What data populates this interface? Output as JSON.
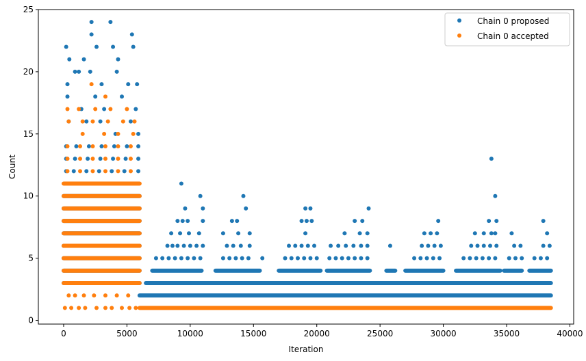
{
  "chart_data": {
    "type": "scatter",
    "xlabel": "Iteration",
    "ylabel": "Count",
    "xlim": [
      -2000,
      40300
    ],
    "ylim": [
      -0.3,
      25
    ],
    "xticks": [
      0,
      5000,
      10000,
      15000,
      20000,
      25000,
      30000,
      35000,
      40000
    ],
    "yticks": [
      0,
      5,
      10,
      15,
      20,
      25
    ],
    "grid": false,
    "legend_position": "top-right",
    "series": [
      {
        "name": "Chain 0 proposed",
        "color": "#1f77b4",
        "points": [
          [
            200,
            22
          ],
          [
            450,
            21
          ],
          [
            900,
            20
          ],
          [
            1600,
            21
          ],
          [
            2200,
            24
          ],
          [
            2200,
            23
          ],
          [
            2600,
            22
          ],
          [
            3700,
            24
          ],
          [
            3900,
            22
          ],
          [
            4300,
            21
          ],
          [
            5400,
            23
          ],
          [
            5500,
            22
          ],
          [
            300,
            19
          ],
          [
            1200,
            20
          ],
          [
            2100,
            20
          ],
          [
            3000,
            19
          ],
          [
            4200,
            20
          ],
          [
            5100,
            19
          ],
          [
            5800,
            19
          ],
          [
            300,
            18
          ],
          [
            1400,
            17
          ],
          [
            2500,
            18
          ],
          [
            3200,
            17
          ],
          [
            4600,
            18
          ],
          [
            5700,
            17
          ],
          [
            400,
            16
          ],
          [
            1800,
            16
          ],
          [
            2900,
            16
          ],
          [
            4100,
            15
          ],
          [
            5300,
            16
          ],
          [
            5900,
            15
          ],
          [
            200,
            14
          ],
          [
            1000,
            14
          ],
          [
            2000,
            14
          ],
          [
            3000,
            14
          ],
          [
            4000,
            14
          ],
          [
            5000,
            14
          ],
          [
            5900,
            14
          ],
          [
            200,
            13
          ],
          [
            900,
            13
          ],
          [
            1900,
            13
          ],
          [
            2900,
            13
          ],
          [
            3900,
            13
          ],
          [
            4900,
            13
          ],
          [
            5900,
            13
          ],
          [
            200,
            12
          ],
          [
            800,
            12
          ],
          [
            1800,
            12
          ],
          [
            2800,
            12
          ],
          [
            3800,
            12
          ],
          [
            4800,
            12
          ],
          [
            5900,
            12
          ],
          [
            200,
            11
          ],
          [
            1100,
            11
          ],
          [
            2100,
            11
          ],
          [
            3100,
            11
          ],
          [
            4100,
            11
          ],
          [
            5100,
            11
          ],
          [
            5900,
            11
          ],
          [
            9300,
            11
          ],
          [
            10800,
            10
          ],
          [
            14200,
            10
          ],
          [
            33800,
            13
          ],
          [
            34100,
            10
          ],
          [
            9600,
            9
          ],
          [
            11000,
            9
          ],
          [
            14400,
            9
          ],
          [
            19100,
            9
          ],
          [
            19500,
            9
          ],
          [
            24100,
            9
          ],
          [
            9000,
            8
          ],
          [
            9400,
            8
          ],
          [
            9800,
            8
          ],
          [
            11000,
            8
          ],
          [
            13300,
            8
          ],
          [
            13700,
            8
          ],
          [
            18800,
            8
          ],
          [
            19200,
            8
          ],
          [
            19600,
            8
          ],
          [
            23000,
            8
          ],
          [
            23600,
            8
          ],
          [
            29600,
            8
          ],
          [
            33600,
            8
          ],
          [
            34200,
            8
          ],
          [
            37900,
            8
          ],
          [
            8500,
            7
          ],
          [
            9200,
            7
          ],
          [
            9900,
            7
          ],
          [
            10700,
            7
          ],
          [
            12600,
            7
          ],
          [
            13800,
            7
          ],
          [
            14700,
            7
          ],
          [
            19100,
            7
          ],
          [
            22200,
            7
          ],
          [
            23400,
            7
          ],
          [
            24000,
            7
          ],
          [
            28500,
            7
          ],
          [
            29000,
            7
          ],
          [
            29500,
            7
          ],
          [
            32500,
            7
          ],
          [
            33200,
            7
          ],
          [
            33800,
            7
          ],
          [
            34100,
            7
          ],
          [
            35400,
            7
          ],
          [
            38200,
            7
          ],
          [
            8200,
            6
          ],
          [
            8600,
            6
          ],
          [
            9000,
            6
          ],
          [
            9500,
            6
          ],
          [
            10000,
            6
          ],
          [
            10500,
            6
          ],
          [
            11000,
            6
          ],
          [
            12900,
            6
          ],
          [
            13400,
            6
          ],
          [
            14000,
            6
          ],
          [
            14700,
            6
          ],
          [
            17800,
            6
          ],
          [
            18300,
            6
          ],
          [
            18800,
            6
          ],
          [
            19300,
            6
          ],
          [
            19800,
            6
          ],
          [
            21100,
            6
          ],
          [
            21700,
            6
          ],
          [
            22300,
            6
          ],
          [
            22900,
            6
          ],
          [
            23500,
            6
          ],
          [
            24000,
            6
          ],
          [
            25800,
            6
          ],
          [
            28300,
            6
          ],
          [
            28800,
            6
          ],
          [
            29300,
            6
          ],
          [
            29800,
            6
          ],
          [
            32200,
            6
          ],
          [
            32700,
            6
          ],
          [
            33200,
            6
          ],
          [
            33700,
            6
          ],
          [
            34200,
            6
          ],
          [
            35600,
            6
          ],
          [
            36100,
            6
          ],
          [
            37900,
            6
          ],
          [
            38400,
            6
          ],
          [
            7300,
            5
          ],
          [
            7800,
            5
          ],
          [
            8300,
            5
          ],
          [
            8800,
            5
          ],
          [
            9300,
            5
          ],
          [
            9800,
            5
          ],
          [
            10300,
            5
          ],
          [
            10800,
            5
          ],
          [
            12600,
            5
          ],
          [
            13100,
            5
          ],
          [
            13600,
            5
          ],
          [
            14100,
            5
          ],
          [
            14600,
            5
          ],
          [
            15700,
            5
          ],
          [
            17500,
            5
          ],
          [
            18000,
            5
          ],
          [
            18500,
            5
          ],
          [
            19000,
            5
          ],
          [
            19500,
            5
          ],
          [
            20000,
            5
          ],
          [
            21000,
            5
          ],
          [
            21500,
            5
          ],
          [
            22000,
            5
          ],
          [
            22500,
            5
          ],
          [
            23000,
            5
          ],
          [
            23500,
            5
          ],
          [
            24000,
            5
          ],
          [
            27700,
            5
          ],
          [
            28200,
            5
          ],
          [
            28700,
            5
          ],
          [
            29200,
            5
          ],
          [
            29700,
            5
          ],
          [
            31600,
            5
          ],
          [
            32100,
            5
          ],
          [
            32600,
            5
          ],
          [
            33100,
            5
          ],
          [
            33600,
            5
          ],
          [
            34100,
            5
          ],
          [
            35200,
            5
          ],
          [
            35700,
            5
          ],
          [
            36200,
            5
          ],
          [
            37200,
            5
          ],
          [
            37700,
            5
          ],
          [
            38200,
            5
          ]
        ],
        "bands": [
          {
            "y": 10,
            "x0": 0,
            "x1": 6000
          },
          {
            "y": 9,
            "x0": 0,
            "x1": 6000
          },
          {
            "y": 8,
            "x0": 0,
            "x1": 6000
          },
          {
            "y": 7,
            "x0": 0,
            "x1": 6000
          },
          {
            "y": 6,
            "x0": 0,
            "x1": 6000
          },
          {
            "y": 5,
            "x0": 0,
            "x1": 6000
          },
          {
            "y": 4,
            "x0": 0,
            "x1": 6000
          },
          {
            "y": 3,
            "x0": 0,
            "x1": 6000
          },
          {
            "y": 4,
            "x0": 7000,
            "x1": 10900
          },
          {
            "y": 4,
            "x0": 12000,
            "x1": 15500
          },
          {
            "y": 4,
            "x0": 17000,
            "x1": 20300
          },
          {
            "y": 4,
            "x0": 20800,
            "x1": 24200
          },
          {
            "y": 4,
            "x0": 25500,
            "x1": 26200
          },
          {
            "y": 4,
            "x0": 27000,
            "x1": 30000
          },
          {
            "y": 4,
            "x0": 31000,
            "x1": 34500
          },
          {
            "y": 4,
            "x0": 34800,
            "x1": 36200
          },
          {
            "y": 4,
            "x0": 36800,
            "x1": 38500
          },
          {
            "y": 3,
            "x0": 6500,
            "x1": 38500
          },
          {
            "y": 2,
            "x0": 6000,
            "x1": 38500
          }
        ]
      },
      {
        "name": "Chain 0 accepted",
        "color": "#ff7f0e",
        "points": [
          [
            2200,
            19
          ],
          [
            3300,
            18
          ],
          [
            300,
            17
          ],
          [
            1200,
            17
          ],
          [
            2500,
            17
          ],
          [
            3700,
            17
          ],
          [
            5000,
            17
          ],
          [
            400,
            16
          ],
          [
            1500,
            16
          ],
          [
            2300,
            16
          ],
          [
            3500,
            16
          ],
          [
            4700,
            16
          ],
          [
            5600,
            16
          ],
          [
            1500,
            15
          ],
          [
            3200,
            15
          ],
          [
            4300,
            15
          ],
          [
            5500,
            15
          ],
          [
            300,
            14
          ],
          [
            1300,
            14
          ],
          [
            2300,
            14
          ],
          [
            3300,
            14
          ],
          [
            4300,
            14
          ],
          [
            5300,
            14
          ],
          [
            300,
            13
          ],
          [
            1300,
            13
          ],
          [
            2300,
            13
          ],
          [
            3300,
            13
          ],
          [
            4300,
            13
          ],
          [
            5300,
            13
          ],
          [
            300,
            12
          ],
          [
            1300,
            12
          ],
          [
            2300,
            12
          ],
          [
            3300,
            12
          ],
          [
            4300,
            12
          ],
          [
            5300,
            12
          ],
          [
            400,
            2
          ],
          [
            900,
            2
          ],
          [
            1600,
            2
          ],
          [
            2400,
            2
          ],
          [
            3300,
            2
          ],
          [
            4200,
            2
          ],
          [
            5100,
            2
          ],
          [
            100,
            1
          ],
          [
            600,
            1
          ],
          [
            1200,
            1
          ],
          [
            1700,
            1
          ],
          [
            2600,
            1
          ],
          [
            3300,
            1
          ],
          [
            3800,
            1
          ],
          [
            4600,
            1
          ],
          [
            5200,
            1
          ],
          [
            5700,
            1
          ]
        ],
        "bands": [
          {
            "y": 11,
            "x0": 0,
            "x1": 6000
          },
          {
            "y": 10,
            "x0": 0,
            "x1": 6000
          },
          {
            "y": 9,
            "x0": 0,
            "x1": 6000
          },
          {
            "y": 8,
            "x0": 0,
            "x1": 6000
          },
          {
            "y": 7,
            "x0": 0,
            "x1": 6000
          },
          {
            "y": 6,
            "x0": 0,
            "x1": 6000
          },
          {
            "y": 5,
            "x0": 0,
            "x1": 6000
          },
          {
            "y": 4,
            "x0": 0,
            "x1": 6000
          },
          {
            "y": 3,
            "x0": 0,
            "x1": 6000
          },
          {
            "y": 1,
            "x0": 6000,
            "x1": 38500
          }
        ]
      }
    ]
  }
}
